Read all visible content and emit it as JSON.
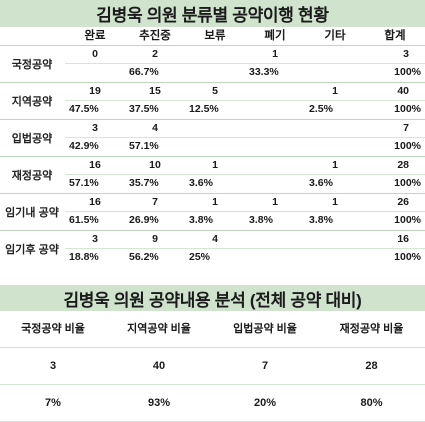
{
  "table1": {
    "title": "김병욱 의원 분류별 공약이행 현황",
    "headers": [
      "완료",
      "추진중",
      "보류",
      "폐기",
      "기타",
      "합계"
    ],
    "rows": [
      {
        "label": "국정공약",
        "counts": [
          "0",
          "2",
          "",
          "1",
          "",
          "3"
        ],
        "pcts": [
          "",
          "66.7%",
          "",
          "33.3%",
          "",
          "100%"
        ]
      },
      {
        "label": "지역공약",
        "counts": [
          "19",
          "15",
          "5",
          "",
          "1",
          "40"
        ],
        "pcts": [
          "47.5%",
          "37.5%",
          "12.5%",
          "",
          "2.5%",
          "100%"
        ]
      },
      {
        "label": "입법공약",
        "counts": [
          "3",
          "4",
          "",
          "",
          "",
          "7"
        ],
        "pcts": [
          "42.9%",
          "57.1%",
          "",
          "",
          "",
          "100%"
        ]
      },
      {
        "label": "재정공약",
        "counts": [
          "16",
          "10",
          "1",
          "",
          "1",
          "28"
        ],
        "pcts": [
          "57.1%",
          "35.7%",
          "3.6%",
          "",
          "3.6%",
          "100%"
        ]
      },
      {
        "label": "임기내 공약",
        "counts": [
          "16",
          "7",
          "1",
          "1",
          "1",
          "26"
        ],
        "pcts": [
          "61.5%",
          "26.9%",
          "3.8%",
          "3.8%",
          "3.8%",
          "100%"
        ]
      },
      {
        "label": "임기후 공약",
        "counts": [
          "3",
          "9",
          "4",
          "",
          "",
          "16"
        ],
        "pcts": [
          "18.8%",
          "56.2%",
          "25%",
          "",
          "",
          "100%"
        ]
      }
    ]
  },
  "table2": {
    "title": "김병욱 의원 공약내용 분석 (전체 공약 대비)",
    "headers": [
      "국정공약 비율",
      "지역공약 비율",
      "입법공약 비율",
      "재정공약 비율"
    ],
    "counts": [
      "3",
      "40",
      "7",
      "28"
    ],
    "pcts": [
      "7%",
      "93%",
      "20%",
      "80%"
    ]
  }
}
